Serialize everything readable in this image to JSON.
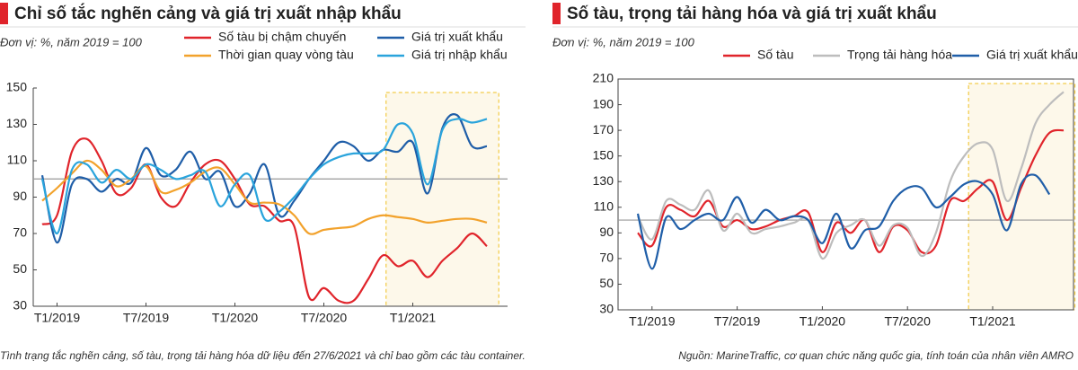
{
  "chart_data": [
    {
      "type": "line",
      "title": "Chỉ số tắc nghẽn cảng và giá trị xuất nhập khẩu",
      "unit_label": "Đơn vị: %, năm 2019 = 100",
      "note": "Tình trạng tắc nghẽn cảng, số tàu, trọng tải hàng hóa dữ liệu đến 27/6/2021 và chỉ bao gồm các tàu container.",
      "categories": [
        null,
        "T1/2019",
        null,
        null,
        null,
        null,
        null,
        "T7/2019",
        null,
        null,
        null,
        null,
        null,
        "T1/2020",
        null,
        null,
        null,
        null,
        null,
        "T7/2020",
        null,
        null,
        null,
        null,
        null,
        "T1/2021",
        null,
        null,
        null,
        null,
        null
      ],
      "ylim": [
        30,
        150
      ],
      "yticks": [
        30,
        50,
        70,
        90,
        110,
        130,
        150
      ],
      "reference_line": 100,
      "series": [
        {
          "name": "Số tàu bị chậm chuyến",
          "color": "#e0242b",
          "values": [
            75,
            80,
            115,
            122,
            110,
            92,
            95,
            108,
            90,
            85,
            98,
            108,
            110,
            100,
            86,
            85,
            77,
            74,
            35,
            40,
            33,
            33,
            45,
            58,
            52,
            55,
            46,
            55,
            62,
            70,
            63
          ]
        },
        {
          "name": "Giá trị xuất khẩu",
          "color": "#1f5ea8",
          "values": [
            102,
            65,
            97,
            100,
            93,
            100,
            98,
            117,
            102,
            105,
            115,
            100,
            104,
            85,
            92,
            108,
            80,
            88,
            100,
            110,
            120,
            118,
            110,
            116,
            115,
            120,
            92,
            128,
            135,
            118,
            118
          ]
        },
        {
          "name": "Thời gian quay vòng tàu",
          "color": "#f2a22c",
          "values": [
            88,
            95,
            103,
            110,
            105,
            96,
            100,
            107,
            93,
            94,
            98,
            104,
            106,
            97,
            87,
            87,
            86,
            80,
            70,
            72,
            73,
            74,
            78,
            80,
            79,
            78,
            76,
            77,
            78,
            78,
            76
          ]
        },
        {
          "name": "Giá trị nhập khẩu",
          "color": "#2aa4dc",
          "values": [
            100,
            70,
            105,
            108,
            98,
            105,
            100,
            108,
            105,
            100,
            102,
            104,
            85,
            97,
            102,
            78,
            82,
            90,
            100,
            108,
            112,
            114,
            114,
            116,
            130,
            125,
            97,
            127,
            133,
            131,
            133
          ]
        }
      ]
    },
    {
      "type": "line",
      "title": "Số tàu, trọng tải hàng hóa và giá trị xuất khẩu",
      "unit_label": "Đơn vị: %, năm 2019 = 100",
      "note": "Nguồn: MarineTraffic, cơ quan chức năng quốc gia, tính toán của nhân viên AMRO",
      "categories": [
        null,
        "T1/2019",
        null,
        null,
        null,
        null,
        null,
        "T7/2019",
        null,
        null,
        null,
        null,
        null,
        "T1/2020",
        null,
        null,
        null,
        null,
        null,
        "T7/2020",
        null,
        null,
        null,
        null,
        null,
        "T1/2021",
        null,
        null,
        null,
        null,
        null
      ],
      "ylim": [
        30,
        210
      ],
      "yticks": [
        30,
        50,
        70,
        90,
        110,
        130,
        150,
        170,
        190,
        210
      ],
      "reference_line": 100,
      "series": [
        {
          "name": "Số tàu",
          "color": "#e0242b",
          "values": [
            90,
            80,
            110,
            108,
            103,
            115,
            95,
            100,
            93,
            95,
            100,
            103,
            106,
            75,
            98,
            90,
            100,
            75,
            95,
            92,
            75,
            80,
            115,
            115,
            125,
            130,
            100,
            125,
            150,
            168,
            170
          ]
        },
        {
          "name": "Trọng tải hàng hóa",
          "color": "#bdbdbd",
          "values": [
            103,
            85,
            115,
            112,
            108,
            123,
            92,
            105,
            90,
            93,
            95,
            98,
            100,
            70,
            90,
            96,
            100,
            80,
            96,
            94,
            72,
            90,
            130,
            150,
            160,
            155,
            115,
            140,
            175,
            190,
            200
          ]
        },
        {
          "name": "Giá trị xuất khẩu",
          "color": "#1f5ea8",
          "values": [
            105,
            62,
            102,
            93,
            100,
            105,
            100,
            118,
            98,
            108,
            100,
            103,
            100,
            82,
            105,
            78,
            92,
            95,
            115,
            125,
            125,
            110,
            118,
            128,
            130,
            120,
            92,
            128,
            135,
            120,
            null
          ]
        }
      ]
    }
  ]
}
